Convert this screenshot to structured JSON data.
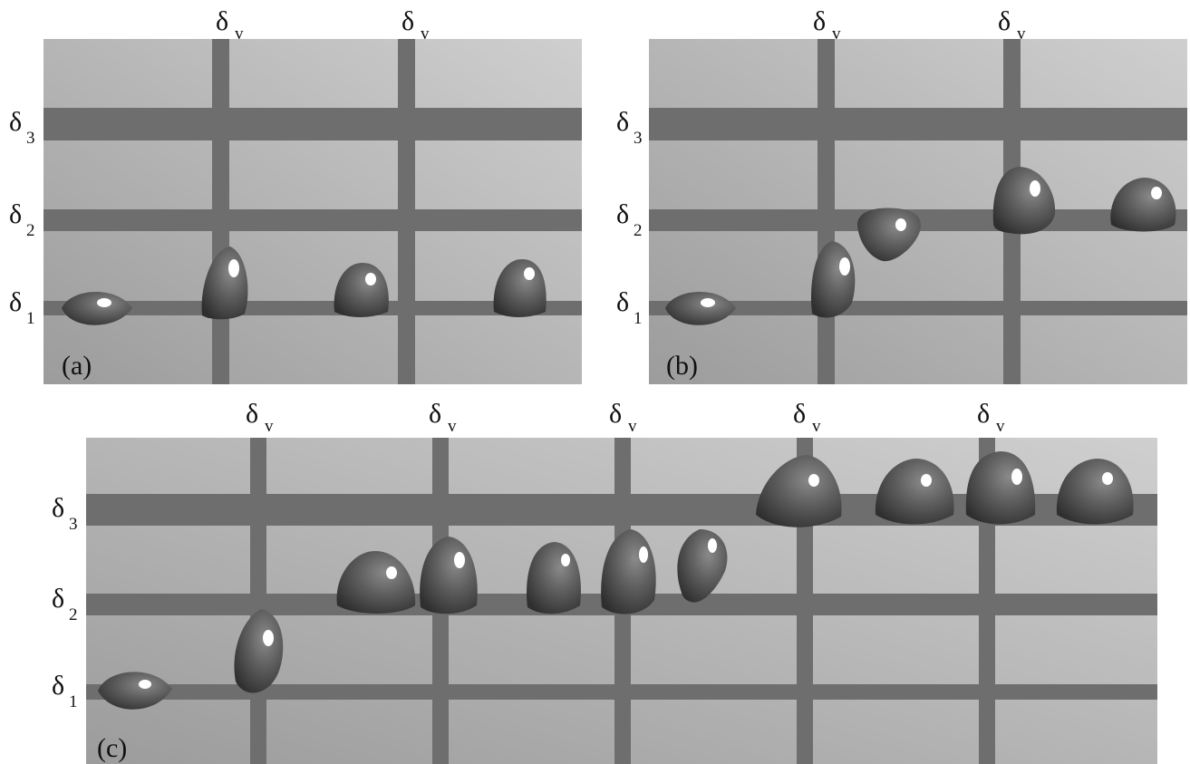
{
  "symbols": {
    "delta": "δ",
    "vertical_sub": "v",
    "sub_1": "1",
    "sub_2": "2",
    "sub_3": "3"
  },
  "panels": [
    {
      "id": "a",
      "tag": "(a)",
      "vertical_stripes": 2,
      "horizontal_stripes": [
        "δ1",
        "δ2",
        "δ3"
      ],
      "drops_level_sequence": [
        1,
        1,
        1,
        1
      ]
    },
    {
      "id": "b",
      "tag": "(b)",
      "vertical_stripes": 2,
      "horizontal_stripes": [
        "δ1",
        "δ2",
        "δ3"
      ],
      "drops_level_sequence": [
        1,
        1,
        2,
        2,
        2
      ]
    },
    {
      "id": "c",
      "tag": "(c)",
      "vertical_stripes": 5,
      "horizontal_stripes": [
        "δ1",
        "δ2",
        "δ3"
      ],
      "drops_level_sequence": [
        1,
        1,
        2,
        2,
        2,
        2,
        2,
        3,
        3,
        3,
        3
      ]
    }
  ],
  "colors": {
    "background_light": "#c7c7c7",
    "background_dark": "#9a9a9a",
    "stripe": "#6e6e6e",
    "drop": "#5e5e5e",
    "drop_dark": "#3a3a3a",
    "highlight": "#ffffff"
  }
}
